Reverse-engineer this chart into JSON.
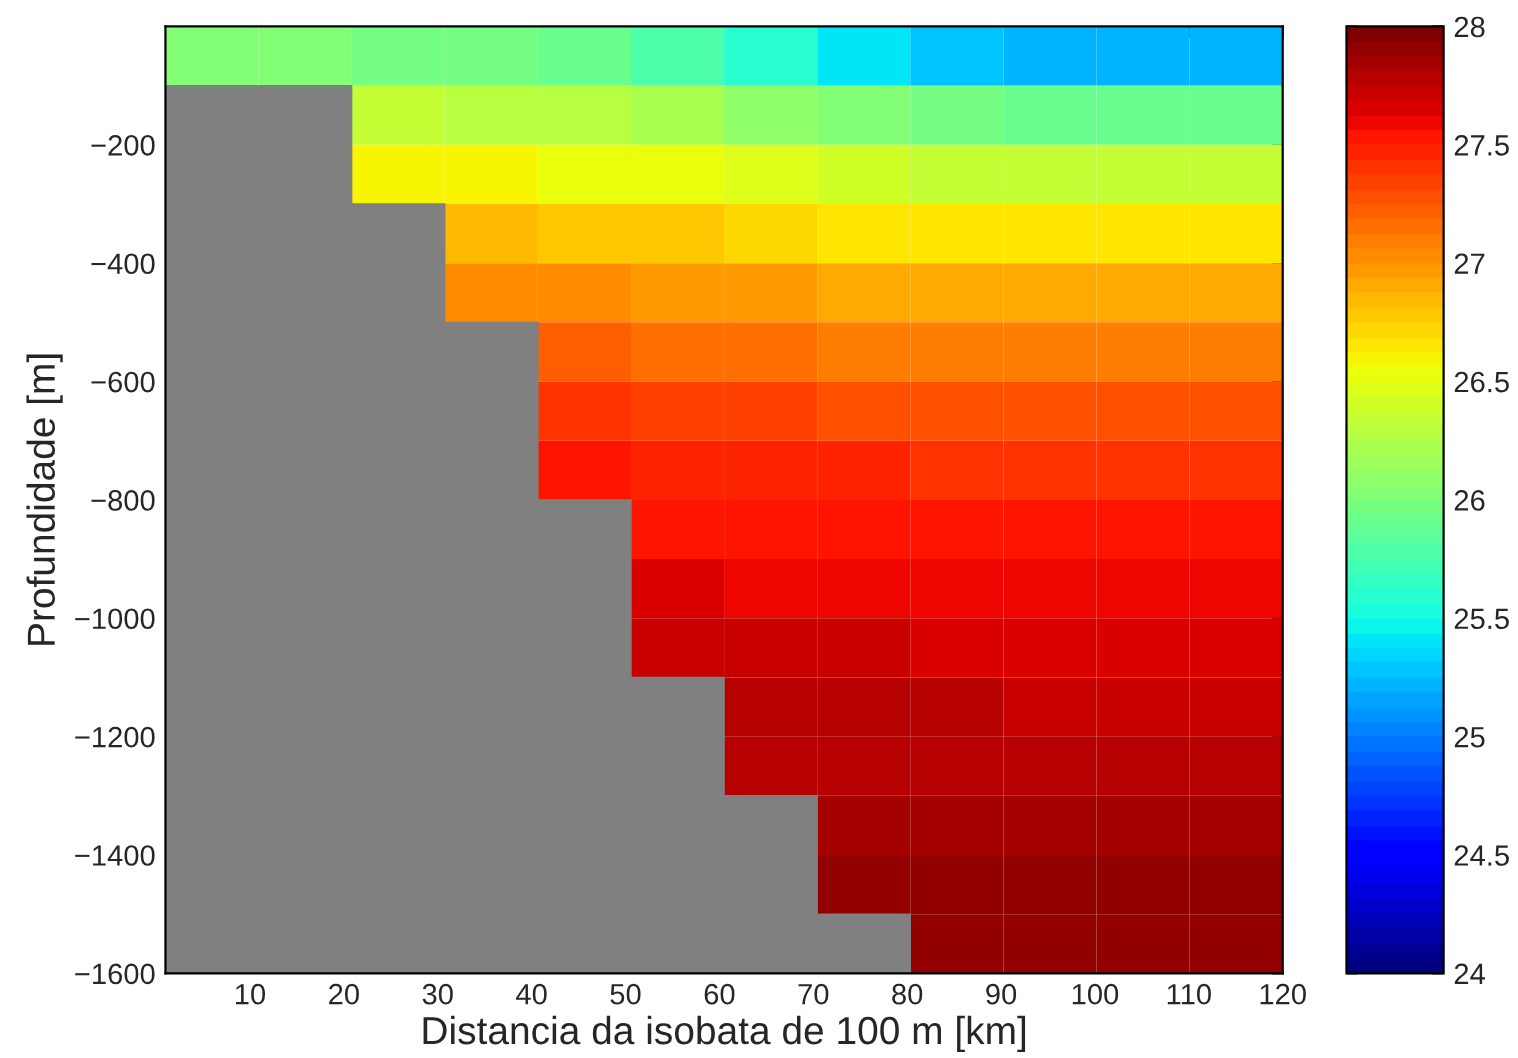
{
  "chart_data": {
    "type": "heatmap",
    "xlabel": "Distancia da isobata de 100 m [km]",
    "ylabel": "Profundidade [m]",
    "xlim": [
      1,
      120
    ],
    "xticks": [
      10,
      20,
      30,
      40,
      50,
      60,
      70,
      80,
      90,
      100,
      110,
      120
    ],
    "ylim": [
      -1600,
      0
    ],
    "yticks": [
      {
        "value": -200,
        "label": "−200"
      },
      {
        "value": -400,
        "label": "−400"
      },
      {
        "value": -600,
        "label": "−600"
      },
      {
        "value": -800,
        "label": "−800"
      },
      {
        "value": -1000,
        "label": "−1000"
      },
      {
        "value": -1200,
        "label": "−1200"
      },
      {
        "value": -1400,
        "label": "−1400"
      },
      {
        "value": -1600,
        "label": "−1600"
      }
    ],
    "clim": [
      24,
      28
    ],
    "cticks": [
      24,
      24.5,
      25,
      25.5,
      26,
      26.5,
      27,
      27.5,
      28
    ],
    "cells": [
      [
        26.0,
        26.0,
        25.95,
        25.95,
        25.9,
        25.8,
        25.6,
        25.4,
        25.25,
        25.2,
        25.2,
        25.2
      ],
      [
        null,
        null,
        26.35,
        26.3,
        26.25,
        26.2,
        26.1,
        26.0,
        25.95,
        25.9,
        25.9,
        25.9
      ],
      [
        null,
        null,
        26.6,
        26.6,
        26.55,
        26.5,
        26.45,
        26.4,
        26.37,
        26.35,
        26.35,
        26.35
      ],
      [
        null,
        null,
        null,
        26.85,
        26.8,
        26.75,
        26.72,
        26.68,
        26.66,
        26.63,
        26.63,
        26.63
      ],
      [
        null,
        null,
        null,
        27.05,
        27.0,
        26.97,
        26.94,
        26.92,
        26.9,
        26.88,
        26.88,
        26.88
      ],
      [
        null,
        null,
        null,
        null,
        27.2,
        27.17,
        27.14,
        27.12,
        27.1,
        27.08,
        27.08,
        27.08
      ],
      [
        null,
        null,
        null,
        null,
        27.4,
        27.35,
        27.32,
        27.3,
        27.28,
        27.27,
        27.27,
        27.27
      ],
      [
        null,
        null,
        null,
        null,
        27.5,
        27.47,
        27.45,
        27.44,
        27.43,
        27.42,
        27.42,
        27.42
      ],
      [
        null,
        null,
        null,
        null,
        null,
        27.56,
        27.55,
        27.54,
        27.53,
        27.52,
        27.52,
        27.52
      ],
      [
        null,
        null,
        null,
        null,
        null,
        27.63,
        27.62,
        27.62,
        27.61,
        27.6,
        27.6,
        27.6
      ],
      [
        null,
        null,
        null,
        null,
        null,
        27.7,
        27.7,
        27.69,
        27.68,
        27.67,
        27.67,
        27.67
      ],
      [
        null,
        null,
        null,
        null,
        null,
        null,
        27.75,
        27.75,
        27.75,
        27.74,
        27.74,
        27.74
      ],
      [
        null,
        null,
        null,
        null,
        null,
        null,
        27.8,
        27.8,
        27.8,
        27.8,
        27.8,
        27.8
      ],
      [
        null,
        null,
        null,
        null,
        null,
        null,
        null,
        27.87,
        27.87,
        27.87,
        27.87,
        27.87
      ],
      [
        null,
        null,
        null,
        null,
        null,
        null,
        null,
        27.9,
        27.9,
        27.9,
        27.9,
        27.9
      ],
      [
        null,
        null,
        null,
        null,
        null,
        null,
        null,
        null,
        27.92,
        27.92,
        27.92,
        27.92
      ]
    ]
  }
}
